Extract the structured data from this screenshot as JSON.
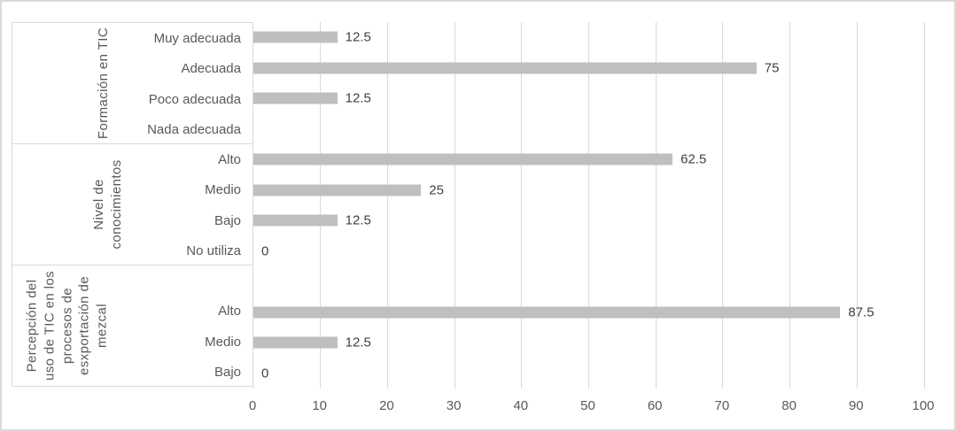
{
  "chart_data": {
    "type": "bar",
    "orientation": "horizontal",
    "title": "",
    "xlabel": "",
    "ylabel": "",
    "xlim": [
      0,
      100
    ],
    "x_ticks": [
      0,
      10,
      20,
      30,
      40,
      50,
      60,
      70,
      80,
      90,
      100
    ],
    "grid": "vertical",
    "legend": "none",
    "bar_color": "#bfbfbf",
    "gridline_color": "#d9d9d9",
    "axis_label_color": "#595959",
    "value_label_color": "#404040",
    "groups": [
      {
        "title": "Formación en TIC",
        "title_lines": "Formación en TIC",
        "items": [
          {
            "label": "Muy adecuada",
            "value": 12.5,
            "value_label": "12.5"
          },
          {
            "label": "Adecuada",
            "value": 75,
            "value_label": "75"
          },
          {
            "label": "Poco adecuada",
            "value": 12.5,
            "value_label": "12.5"
          },
          {
            "label": "Nada adecuada",
            "value": null,
            "value_label": ""
          }
        ]
      },
      {
        "title": "Nivel de conocimientos",
        "title_lines": "Nivel de\nconocimientos",
        "items": [
          {
            "label": "Alto",
            "value": 62.5,
            "value_label": "62.5"
          },
          {
            "label": "Medio",
            "value": 25,
            "value_label": "25"
          },
          {
            "label": "Bajo",
            "value": 12.5,
            "value_label": "12.5"
          },
          {
            "label": "No utiliza",
            "value": 0,
            "value_label": "0"
          }
        ]
      },
      {
        "title": "Percepción del uso de TIC en los procesos de esxportación de mezcal",
        "title_lines": "Percepción del\nuso de TIC en los\nprocesos de\nesxportación de\nmezcal",
        "items": [
          {
            "label": "",
            "value": null,
            "value_label": ""
          },
          {
            "label": "Alto",
            "value": 87.5,
            "value_label": "87.5"
          },
          {
            "label": "Medio",
            "value": 12.5,
            "value_label": "12.5"
          },
          {
            "label": "Bajo",
            "value": 0,
            "value_label": "0"
          }
        ]
      }
    ]
  }
}
